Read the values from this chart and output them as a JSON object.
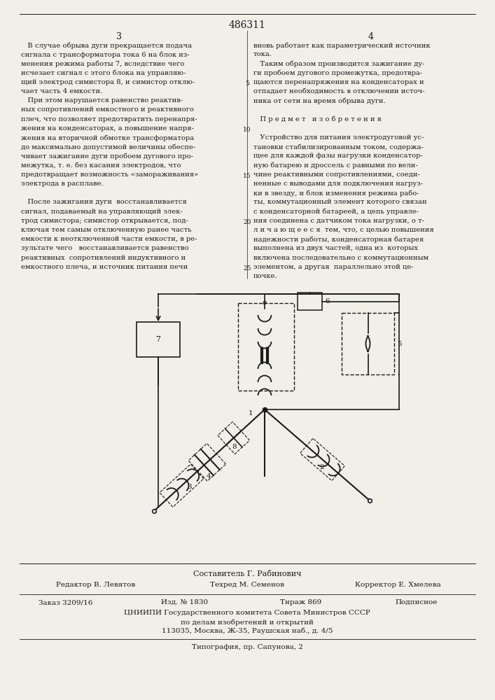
{
  "patent_number": "486311",
  "page_left": "3",
  "page_right": "4",
  "col1_lines": [
    "   В случае обрыва дуги прекращается подача",
    "сигнала с трансформатора тока 6 на блок из-",
    "менения режима работы 7, вследствие чего",
    "исчезает сигнал с этого блока на управляю-",
    "щий электрод симистора 8, и симистор отклю-",
    "чает часть 4 емкости.",
    "   При этом нарушается равенство реактив-",
    "ных сопротивлений емкостного и реактивного",
    "плеч, что позволяет предотвратить перенапря-",
    "жения на конденсаторах, а повышение напря-",
    "жения на вторичной обмотке трансформатора",
    "до максимально допустимой величины обеспе-",
    "чивает зажигание дуги пробоем дугового про-",
    "межутка, т. е. без касания электродов, что",
    "предотвращает возможность «замораживания»",
    "электрода в расплаве.",
    "",
    "   После зажигания дуги  восстанавливается",
    "сигнал, подаваемый на управляющий элек-",
    "трод симистора; симистор открывается, под-",
    "ключая тем самым отключенную ранее часть",
    "емкости к неотключенной части емкости, в ре-",
    "зультате чего   восстанавливается равенство",
    "реактивных  сопротивлений индуктивного и",
    "емкостного плеча, и источник питания печи"
  ],
  "col2_lines": [
    "вновь работает как параметрический источник",
    "тока.",
    "   Таким образом производится зажигание ду-",
    "ги пробоем дугового промежутка, предотвра-",
    "щаются перенапряжения на конденсаторах и",
    "отпадает необходимость в отключении источ-",
    "ника от сети на время обрыва дуги.",
    "",
    "   П р е д м е т   и з о б р е т е н и я",
    "",
    "   Устройство для питания электродуговой ус-",
    "тановки стабилизированным током, содержа-",
    "щее для каждой фазы нагрузки конденсатор-",
    "ную батарею и дроссель с равными по вели-",
    "чине реактивными сопротивлениями, соеди-",
    "ненные с выводами для подключения нагруз-",
    "ки в звезду, и блок изменения режима рабо-",
    "ты, коммутационный элемент которого связан",
    "с конденсаторной батареей, а цепь управле-",
    "ния соединена с датчиком тока нагрузки, о т-",
    "л и ч а ю щ е е с я  тем, что, с целью повышения",
    "надежности работы, конденсаторная батарея",
    "выполнена из двух частей, одна из  которых",
    "включена последовательно с коммутационным",
    "элементом, а другая  параллельно этой це-",
    "почке."
  ],
  "composer": "Составитель Г. Рабинович",
  "editor": "Редактор В. Левятов",
  "techred": "Техред М. Семенов",
  "corrector": "Корректор Е. Хмелева",
  "order": "Заказ 3209/16",
  "izd": "Изд. № 1830",
  "tirazh": "Тираж 869",
  "podpisnoe": "Подписное",
  "tsniipi_line1": "ЦНИИПИ Государственного комитета Совета Министров СССР",
  "tsniipi_line2": "по делам изобретений и открытий",
  "tsniipi_line3": "113035, Москва, Ж-35, Раушская наб., д. 4/5",
  "tipografia": "Типография, пр. Сапунова, 2",
  "bg_color": "#f0efe8",
  "text_color": "#1a1a1a"
}
